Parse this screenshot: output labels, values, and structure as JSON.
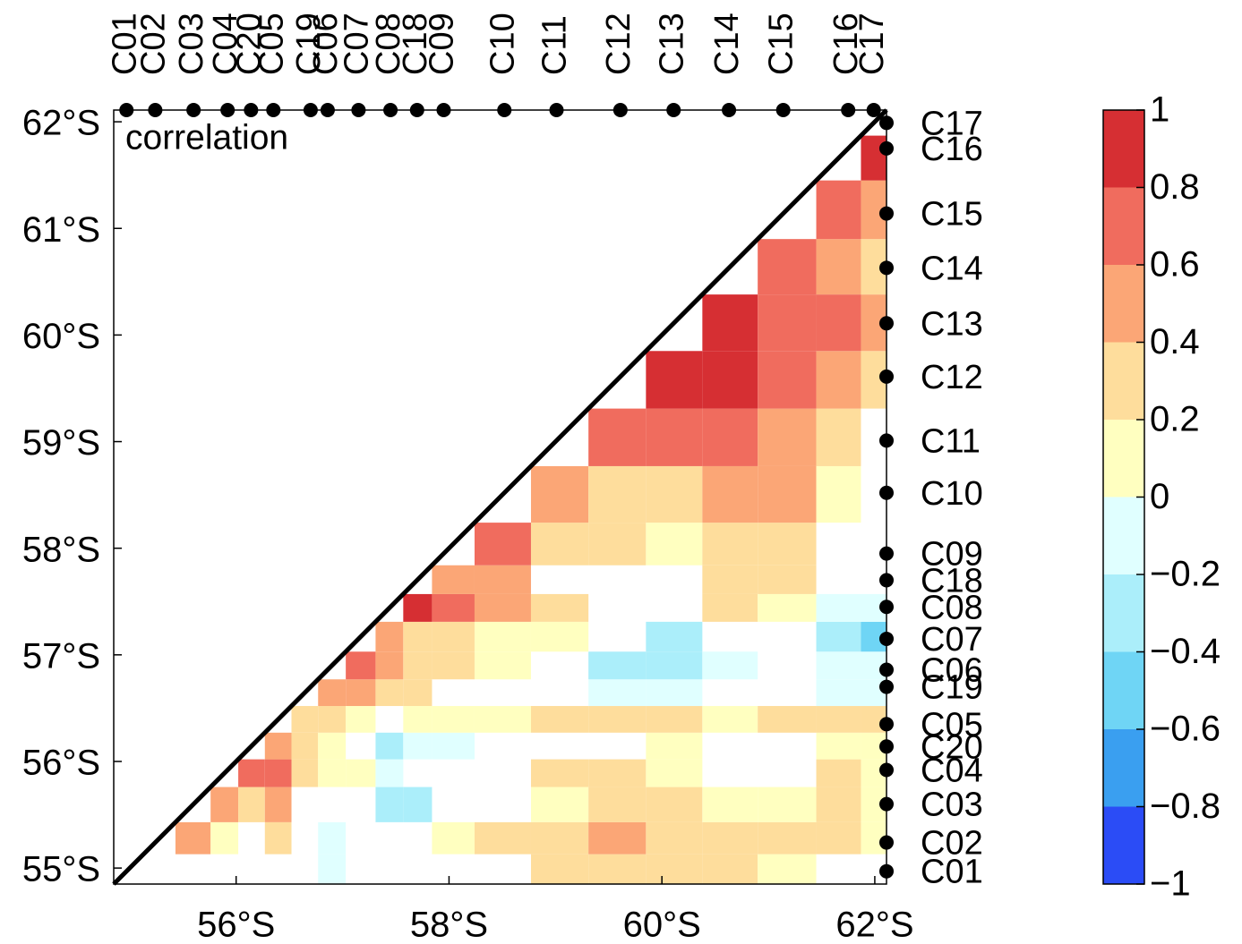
{
  "chart_data": {
    "type": "heatmap",
    "annotation": "correlation",
    "xlim": [
      54.85,
      62.11
    ],
    "ylim": [
      54.85,
      62.11
    ],
    "xticks": [
      {
        "value": 56,
        "label": "56°S"
      },
      {
        "value": 58,
        "label": "58°S"
      },
      {
        "value": 60,
        "label": "60°S"
      },
      {
        "value": 62,
        "label": "62°S"
      }
    ],
    "yticks": [
      {
        "value": 55,
        "label": "55°S"
      },
      {
        "value": 56,
        "label": "56°S"
      },
      {
        "value": 57,
        "label": "57°S"
      },
      {
        "value": 58,
        "label": "58°S"
      },
      {
        "value": 59,
        "label": "59°S"
      },
      {
        "value": 60,
        "label": "60°S"
      },
      {
        "value": 61,
        "label": "61°S"
      },
      {
        "value": 62,
        "label": "62°S"
      }
    ],
    "stations": [
      {
        "name": "C01",
        "lat": 54.97
      },
      {
        "name": "C02",
        "lat": 55.24
      },
      {
        "name": "C03",
        "lat": 55.6
      },
      {
        "name": "C04",
        "lat": 55.92
      },
      {
        "name": "C20",
        "lat": 56.14
      },
      {
        "name": "C05",
        "lat": 56.35
      },
      {
        "name": "C19",
        "lat": 56.7
      },
      {
        "name": "C06",
        "lat": 56.86
      },
      {
        "name": "C07",
        "lat": 57.15
      },
      {
        "name": "C08",
        "lat": 57.45
      },
      {
        "name": "C18",
        "lat": 57.7
      },
      {
        "name": "C09",
        "lat": 57.95
      },
      {
        "name": "C10",
        "lat": 58.52
      },
      {
        "name": "C11",
        "lat": 59.01
      },
      {
        "name": "C12",
        "lat": 59.61
      },
      {
        "name": "C13",
        "lat": 60.11
      },
      {
        "name": "C14",
        "lat": 60.63
      },
      {
        "name": "C15",
        "lat": 61.14
      },
      {
        "name": "C16",
        "lat": 61.75
      },
      {
        "name": "C17",
        "lat": 61.99
      }
    ],
    "edges": [
      54.85,
      55.13,
      55.43,
      55.76,
      56.02,
      56.27,
      56.52,
      56.77,
      57.03,
      57.31,
      57.57,
      57.84,
      58.24,
      58.77,
      59.31,
      59.85,
      60.38,
      60.9,
      61.45,
      61.87,
      62.11
    ],
    "matrix": [
      [
        null,
        null,
        null,
        null,
        null,
        null,
        null,
        -0.1,
        null,
        null,
        null,
        null,
        null,
        0.3,
        0.3,
        0.3,
        0.3,
        0.1,
        null,
        null
      ],
      [
        null,
        null,
        0.5,
        0.1,
        null,
        0.3,
        null,
        -0.1,
        null,
        null,
        null,
        0.1,
        0.3,
        0.3,
        0.5,
        0.3,
        0.3,
        0.3,
        0.3,
        0.1
      ],
      [
        null,
        null,
        null,
        0.5,
        0.3,
        0.5,
        null,
        null,
        null,
        -0.3,
        -0.3,
        null,
        null,
        0.1,
        0.3,
        0.3,
        0.1,
        0.1,
        0.3,
        0.1
      ],
      [
        null,
        null,
        null,
        null,
        0.7,
        0.7,
        0.3,
        0.1,
        0.1,
        -0.1,
        null,
        null,
        null,
        0.3,
        0.3,
        0.1,
        null,
        null,
        0.3,
        0.1
      ],
      [
        null,
        null,
        null,
        null,
        null,
        0.5,
        0.3,
        0.1,
        null,
        -0.3,
        -0.1,
        -0.1,
        null,
        null,
        null,
        0.1,
        null,
        null,
        0.1,
        0.1
      ],
      [
        null,
        null,
        null,
        null,
        null,
        null,
        0.3,
        0.3,
        0.1,
        null,
        0.1,
        0.1,
        0.1,
        0.3,
        0.3,
        0.3,
        0.1,
        0.3,
        0.3,
        0.3
      ],
      [
        null,
        null,
        null,
        null,
        null,
        null,
        null,
        0.5,
        0.5,
        0.3,
        0.3,
        null,
        null,
        null,
        -0.1,
        -0.1,
        null,
        null,
        -0.1,
        -0.1
      ],
      [
        null,
        null,
        null,
        null,
        null,
        null,
        null,
        null,
        0.7,
        0.5,
        0.3,
        0.3,
        0.1,
        null,
        -0.3,
        -0.3,
        -0.1,
        null,
        -0.1,
        -0.1
      ],
      [
        null,
        null,
        null,
        null,
        null,
        null,
        null,
        null,
        null,
        0.5,
        0.3,
        0.3,
        0.1,
        0.1,
        null,
        -0.3,
        null,
        null,
        -0.3,
        -0.5
      ],
      [
        null,
        null,
        null,
        null,
        null,
        null,
        null,
        null,
        null,
        null,
        0.9,
        0.7,
        0.5,
        0.3,
        null,
        null,
        0.3,
        0.1,
        -0.1,
        -0.1
      ],
      [
        null,
        null,
        null,
        null,
        null,
        null,
        null,
        null,
        null,
        null,
        null,
        0.5,
        0.5,
        null,
        null,
        null,
        0.3,
        0.3,
        null,
        null
      ],
      [
        null,
        null,
        null,
        null,
        null,
        null,
        null,
        null,
        null,
        null,
        null,
        null,
        0.7,
        0.3,
        0.3,
        0.1,
        0.3,
        0.3,
        null,
        null
      ],
      [
        null,
        null,
        null,
        null,
        null,
        null,
        null,
        null,
        null,
        null,
        null,
        null,
        null,
        0.5,
        0.3,
        0.3,
        0.5,
        0.5,
        0.1,
        null
      ],
      [
        null,
        null,
        null,
        null,
        null,
        null,
        null,
        null,
        null,
        null,
        null,
        null,
        null,
        null,
        0.7,
        0.7,
        0.7,
        0.5,
        0.3,
        null
      ],
      [
        null,
        null,
        null,
        null,
        null,
        null,
        null,
        null,
        null,
        null,
        null,
        null,
        null,
        null,
        null,
        0.9,
        0.9,
        0.7,
        0.5,
        0.3
      ],
      [
        null,
        null,
        null,
        null,
        null,
        null,
        null,
        null,
        null,
        null,
        null,
        null,
        null,
        null,
        null,
        null,
        0.9,
        0.7,
        0.7,
        0.5
      ],
      [
        null,
        null,
        null,
        null,
        null,
        null,
        null,
        null,
        null,
        null,
        null,
        null,
        null,
        null,
        null,
        null,
        null,
        0.7,
        0.5,
        0.3
      ],
      [
        null,
        null,
        null,
        null,
        null,
        null,
        null,
        null,
        null,
        null,
        null,
        null,
        null,
        null,
        null,
        null,
        null,
        null,
        0.7,
        0.5
      ],
      [
        null,
        null,
        null,
        null,
        null,
        null,
        null,
        null,
        null,
        null,
        null,
        null,
        null,
        null,
        null,
        null,
        null,
        null,
        null,
        0.9
      ],
      [
        null,
        null,
        null,
        null,
        null,
        null,
        null,
        null,
        null,
        null,
        null,
        null,
        null,
        null,
        null,
        null,
        null,
        null,
        null,
        null
      ]
    ],
    "colorbar": {
      "clim": [
        -1,
        1
      ],
      "ticks": [
        {
          "value": -1,
          "label": "−1"
        },
        {
          "value": -0.8,
          "label": "−0.8"
        },
        {
          "value": -0.6,
          "label": "−0.6"
        },
        {
          "value": -0.4,
          "label": "−0.4"
        },
        {
          "value": -0.2,
          "label": "−0.2"
        },
        0,
        0.2,
        0.4,
        0.6,
        0.8,
        1
      ],
      "colors": [
        "#2b4cf6",
        "#3a9ff0",
        "#6fd5f5",
        "#abeefa",
        "#e0ffff",
        "#ffffc0",
        "#fedd9c",
        "#fba676",
        "#f06c5e",
        "#d62f33"
      ]
    }
  }
}
